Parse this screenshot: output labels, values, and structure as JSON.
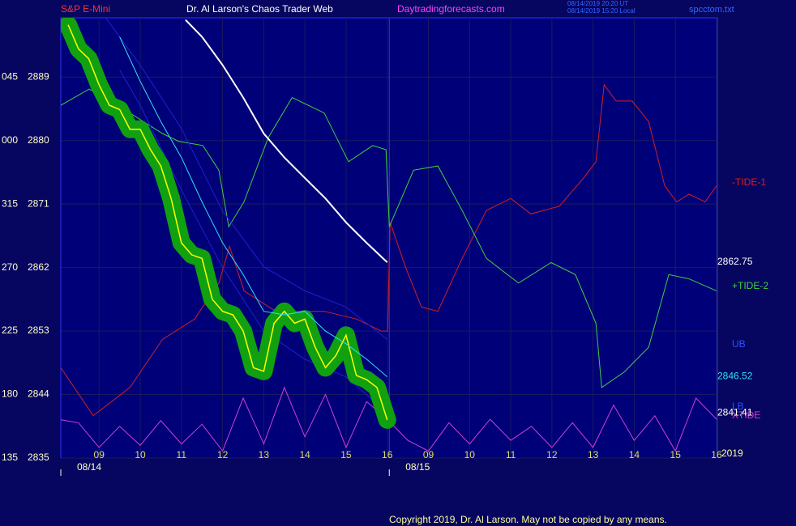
{
  "header": {
    "symbol": "S&P E-Mini",
    "title": "Dr. Al Larson's Chaos Trader Web",
    "site": "Daytradingforecasts.com",
    "time_ut": "08/14/2019 20:20 UT",
    "time_local": "08/14/2019 15:20 Local",
    "file": "spcctom.txt"
  },
  "footer": "Copyright 2019, Dr. Al Larson. May not be copied by any means.",
  "chart_data": {
    "type": "line",
    "ylim": [
      2835,
      2897.4
    ],
    "yticks": [
      2835,
      2844,
      2853,
      2862,
      2871,
      2880,
      2889
    ],
    "y_angle_labels": [
      "135",
      "180",
      "225",
      "270",
      "315",
      "000",
      "045"
    ],
    "xlim": [
      0.07,
      16.02
    ],
    "xticks": [
      {
        "value": 1,
        "label": "09"
      },
      {
        "value": 2,
        "label": "10"
      },
      {
        "value": 3,
        "label": "11"
      },
      {
        "value": 4,
        "label": "12"
      },
      {
        "value": 5,
        "label": "13"
      },
      {
        "value": 6,
        "label": "14"
      },
      {
        "value": 7,
        "label": "15"
      },
      {
        "value": 8,
        "label": "16"
      },
      {
        "value": 9,
        "label": "09"
      },
      {
        "value": 10,
        "label": "10"
      },
      {
        "value": 11,
        "label": "11"
      },
      {
        "value": 12,
        "label": "12"
      },
      {
        "value": 13,
        "label": "13"
      },
      {
        "value": 14,
        "label": "14"
      },
      {
        "value": 15,
        "label": "15"
      },
      {
        "value": 16,
        "label": "16"
      }
    ],
    "dates": [
      {
        "value": 0.07,
        "label": "08/14"
      },
      {
        "value": 8.05,
        "label": "08/15"
      }
    ],
    "year": "2019",
    "grid": true,
    "series": [
      {
        "name": "-TIDE-1",
        "color": "#d42020",
        "x": [
          0.07,
          0.86,
          1.75,
          2.54,
          3.32,
          3.91,
          4.17,
          4.52,
          5.29,
          6.47,
          7.26,
          7.85,
          8.01,
          8.07,
          8.44,
          8.83,
          9.23,
          9.82,
          10.41,
          11.0,
          11.49,
          12.18,
          12.77,
          13.07,
          13.27,
          13.56,
          13.95,
          14.35,
          14.74,
          15.03,
          15.33,
          15.72,
          16.0
        ],
        "values": [
          2847.8,
          2841.0,
          2845.0,
          2851.8,
          2854.7,
          2859.8,
          2865.0,
          2858.7,
          2855.8,
          2855.8,
          2854.7,
          2853.0,
          2853.0,
          2868.4,
          2862.1,
          2856.4,
          2855.8,
          2863.3,
          2870.1,
          2871.8,
          2869.6,
          2870.7,
          2874.7,
          2877.0,
          2887.9,
          2885.6,
          2885.6,
          2882.7,
          2873.6,
          2871.3,
          2872.4,
          2871.3,
          2873.6
        ]
      },
      {
        "name": "+TIDE-2",
        "color": "#40d040",
        "x": [
          0.07,
          0.76,
          1.75,
          2.54,
          2.93,
          3.52,
          3.91,
          4.15,
          4.52,
          5.11,
          5.69,
          6.47,
          7.06,
          7.65,
          7.97,
          8.05,
          8.64,
          9.23,
          9.82,
          10.41,
          11.19,
          11.98,
          12.57,
          13.07,
          13.21,
          13.76,
          14.35,
          14.84,
          15.33,
          16.0
        ],
        "values": [
          2885.0,
          2887.3,
          2883.9,
          2881.0,
          2879.9,
          2879.3,
          2875.8,
          2867.8,
          2871.3,
          2880.4,
          2886.1,
          2883.9,
          2877.0,
          2879.3,
          2878.7,
          2867.8,
          2875.8,
          2876.4,
          2870.1,
          2863.3,
          2859.8,
          2862.7,
          2861.0,
          2854.1,
          2845.0,
          2847.2,
          2850.7,
          2861.0,
          2860.4,
          2858.7
        ]
      },
      {
        "name": "XTIDE",
        "color": "#d040d0",
        "x": [
          0,
          0.5,
          1,
          1.5,
          2,
          2.5,
          3,
          3.5,
          4,
          4.5,
          5,
          5.5,
          6,
          6.5,
          7,
          7.5,
          8,
          8.5,
          9,
          9.5,
          10,
          10.5,
          11,
          11.5,
          12,
          12.5,
          13,
          13.5,
          14,
          14.5,
          15,
          15.5,
          16
        ],
        "values": [
          2840.5,
          2840.0,
          2836.5,
          2839.5,
          2836.8,
          2840.3,
          2837.0,
          2839.8,
          2836.0,
          2843.5,
          2837.0,
          2845.0,
          2838.0,
          2844.0,
          2836.5,
          2843.0,
          2840.5,
          2837.5,
          2836.0,
          2840.0,
          2837.0,
          2840.5,
          2837.5,
          2839.5,
          2836.5,
          2840.0,
          2836.5,
          2842.5,
          2837.5,
          2841.0,
          2836.0,
          2843.5,
          2840.5
        ]
      },
      {
        "name": "UB",
        "color": "#2020d0",
        "x": [
          1.16,
          2,
          3.01,
          3.99,
          5,
          6,
          7,
          8
        ],
        "values": [
          2897.4,
          2890.7,
          2881.6,
          2870.1,
          2862.1,
          2858.7,
          2856.4,
          2851.8
        ]
      },
      {
        "name": "LB",
        "color": "#2020d0",
        "end_label": "2841.41",
        "x": [
          1.5,
          2,
          3,
          4,
          5,
          6,
          7,
          8
        ],
        "values": [
          2890,
          2885,
          2873,
          2862,
          2853,
          2849,
          2846.5,
          2841.41
        ]
      },
      {
        "color": "#ffffff",
        "end_label": "2862.75",
        "x": [
          3.1,
          3.5,
          4,
          4.5,
          5,
          5.5,
          6,
          6.5,
          7,
          7.5,
          8
        ],
        "values": [
          2897.1,
          2894.7,
          2890.7,
          2886.1,
          2881.0,
          2877.6,
          2874.7,
          2871.8,
          2868.4,
          2865.5,
          2862.75
        ]
      },
      {
        "color": "#ffff00",
        "band_color": "#10a010",
        "x": [
          0.25,
          0.5,
          0.75,
          1,
          1.25,
          1.5,
          1.75,
          2,
          2.25,
          2.5,
          2.75,
          3,
          3.25,
          3.5,
          3.75,
          4,
          4.25,
          4.5,
          4.75,
          5,
          5.25,
          5.5,
          5.75,
          6,
          6.25,
          6.5,
          6.75,
          7,
          7.25,
          7.5,
          7.75,
          8
        ],
        "values": [
          2896.4,
          2893.0,
          2891.6,
          2887.9,
          2885.0,
          2884.4,
          2881.6,
          2881.6,
          2878.7,
          2876.4,
          2871.8,
          2865.5,
          2863.8,
          2863.3,
          2857.5,
          2855.8,
          2855.3,
          2853.0,
          2847.8,
          2847.3,
          2854.1,
          2855.8,
          2854.1,
          2854.7,
          2850.7,
          2847.8,
          2849.5,
          2852.4,
          2846.7,
          2846.1,
          2845.0,
          2840.4
        ]
      },
      {
        "color": "#30e0f0",
        "end_label": "2846.52",
        "x": [
          1.5,
          2,
          2.5,
          3,
          3.5,
          4,
          4.5,
          5,
          5.5,
          6,
          6.5,
          7,
          7.5,
          8
        ],
        "values": [
          2894.7,
          2888.4,
          2882.7,
          2877.6,
          2871.3,
          2865.5,
          2861.0,
          2855.8,
          2855.3,
          2855.8,
          2853.0,
          2851.2,
          2849.0,
          2846.52
        ]
      }
    ]
  }
}
